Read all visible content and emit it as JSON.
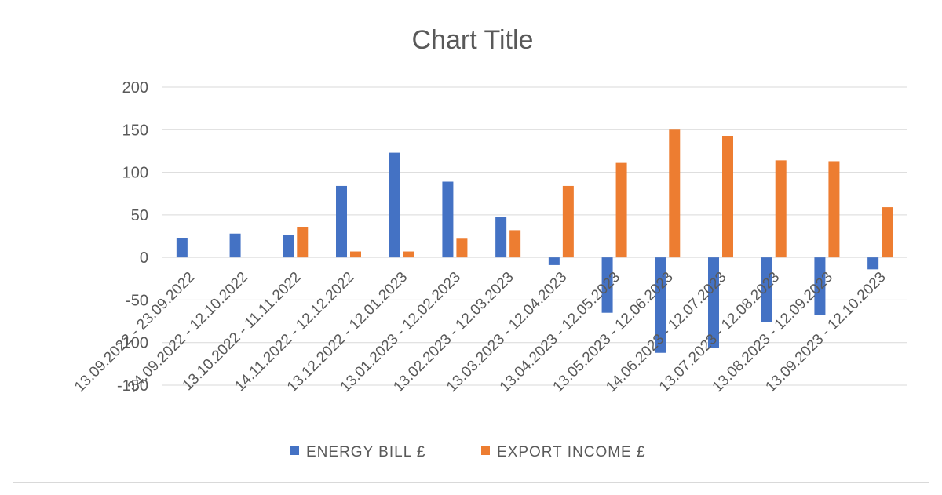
{
  "chart_data": {
    "type": "bar",
    "title": "Chart Title",
    "categories": [
      "13.09.2022 - 23.09.2022",
      "24.09.2022 - 12.10.2022",
      "13.10.2022 - 11.11.2022",
      "14.11.2022 - 12.12.2022",
      "13.12.2022 - 12.01.2023",
      "13.01.2023 - 12.02.2023",
      "13.02.2023 - 12.03.2023",
      "13.03.2023 - 12.04.2023",
      "13.04.2023 - 12.05.2023",
      "13.05.2023 - 12.06.2023",
      "14.06.2023 - 12.07.2023",
      "13.07.2023 - 12.08.2023",
      "13.08.2023 - 12.09.2023",
      "13.09.2023 - 12.10.2023"
    ],
    "series": [
      {
        "name": "ENERGY BILL £",
        "color": "#4472c4",
        "values": [
          23,
          28,
          26,
          84,
          123,
          89,
          48,
          -9,
          -65,
          -112,
          -106,
          -76,
          -68,
          -14
        ]
      },
      {
        "name": "EXPORT INCOME £",
        "color": "#ed7d31",
        "values": [
          0,
          0,
          36,
          7,
          7,
          22,
          32,
          84,
          111,
          150,
          142,
          114,
          113,
          59
        ]
      }
    ],
    "ylim": [
      -150,
      200
    ],
    "yticks": [
      200,
      150,
      100,
      50,
      0,
      -50,
      -100,
      -150
    ],
    "grid": true,
    "legend_position": "bottom"
  }
}
